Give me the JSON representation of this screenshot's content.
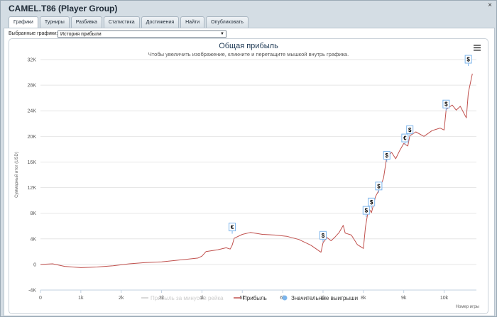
{
  "window": {
    "title": "CAMEL.T86 (Player Group)",
    "close_glyph": "×"
  },
  "tabs": [
    {
      "label": "Графики",
      "active": true
    },
    {
      "label": "Турниры",
      "active": false
    },
    {
      "label": "Разбивка",
      "active": false
    },
    {
      "label": "Статистика",
      "active": false
    },
    {
      "label": "Достижения",
      "active": false
    },
    {
      "label": "Найти",
      "active": false
    },
    {
      "label": "Опубликовать",
      "active": false
    }
  ],
  "selector": {
    "label": "Выбранные графики:",
    "value": "История прибыли"
  },
  "chart_data": {
    "type": "line",
    "title": "Общая прибыль",
    "subtitle": "Чтобы увеличить изображение, кликните и перетащите мышкой внутрь графика.",
    "xlabel": "Номер игры",
    "ylabel": "Суммарный итог (USD)",
    "xlim": [
      0,
      10800
    ],
    "ylim": [
      -4000,
      32000
    ],
    "x_ticks": [
      "0",
      "1k",
      "2k",
      "3k",
      "4k",
      "5k",
      "6k",
      "7k",
      "8k",
      "9k",
      "10k"
    ],
    "y_ticks": [
      "-4K",
      "0",
      "4K",
      "8K",
      "12K",
      "16K",
      "20K",
      "24K",
      "28K",
      "32K"
    ],
    "grid": true,
    "legend_position": "bottom",
    "legend": [
      {
        "name": "Прибыль за минусом рейка",
        "color": "#d0d0d0",
        "enabled": false
      },
      {
        "name": "Прибыль",
        "color": "#c0504d",
        "enabled": true
      },
      {
        "name": "Значительные выигрыши",
        "color": "#7cb5ec",
        "enabled": true
      }
    ],
    "series": [
      {
        "name": "Прибыль",
        "color": "#c0504d",
        "x": [
          0,
          300,
          600,
          1000,
          1400,
          1800,
          2200,
          2600,
          3000,
          3300,
          3600,
          3900,
          4000,
          4100,
          4400,
          4600,
          4700,
          4750,
          4800,
          5000,
          5200,
          5500,
          5800,
          6100,
          6400,
          6700,
          6950,
          7000,
          7100,
          7200,
          7300,
          7400,
          7500,
          7550,
          7700,
          7850,
          8000,
          8050,
          8100,
          8150,
          8200,
          8300,
          8400,
          8500,
          8580,
          8700,
          8800,
          8900,
          9000,
          9100,
          9150,
          9300,
          9500,
          9700,
          9900,
          10000,
          10050,
          10200,
          10300,
          10400,
          10500,
          10550,
          10600,
          10700
        ],
        "values": [
          0,
          100,
          -300,
          -500,
          -400,
          -200,
          100,
          300,
          400,
          600,
          800,
          1000,
          1300,
          2000,
          2300,
          2600,
          2400,
          3000,
          4100,
          4700,
          5000,
          4700,
          4600,
          4400,
          3900,
          3000,
          1900,
          3400,
          4200,
          3700,
          4300,
          5000,
          6100,
          4900,
          4600,
          3100,
          2500,
          5800,
          7700,
          8600,
          8100,
          10600,
          11800,
          13500,
          16800,
          17500,
          16500,
          17800,
          18900,
          18500,
          20100,
          20700,
          20000,
          20900,
          21300,
          21000,
          24200,
          24900,
          24100,
          24700,
          23500,
          22900,
          26800,
          29800
        ]
      }
    ],
    "big_wins": [
      {
        "x": 4750,
        "y": 4800,
        "symbol": "€"
      },
      {
        "x": 7000,
        "y": 3500,
        "symbol": "$"
      },
      {
        "x": 8070,
        "y": 7400,
        "symbol": "$"
      },
      {
        "x": 8200,
        "y": 8700,
        "symbol": "$"
      },
      {
        "x": 8380,
        "y": 11200,
        "symbol": "$"
      },
      {
        "x": 8580,
        "y": 16000,
        "symbol": "$"
      },
      {
        "x": 9030,
        "y": 18700,
        "symbol": "€"
      },
      {
        "x": 9150,
        "y": 20000,
        "symbol": "$"
      },
      {
        "x": 10050,
        "y": 24000,
        "symbol": "$"
      },
      {
        "x": 10600,
        "y": 31000,
        "symbol": "$"
      }
    ]
  }
}
